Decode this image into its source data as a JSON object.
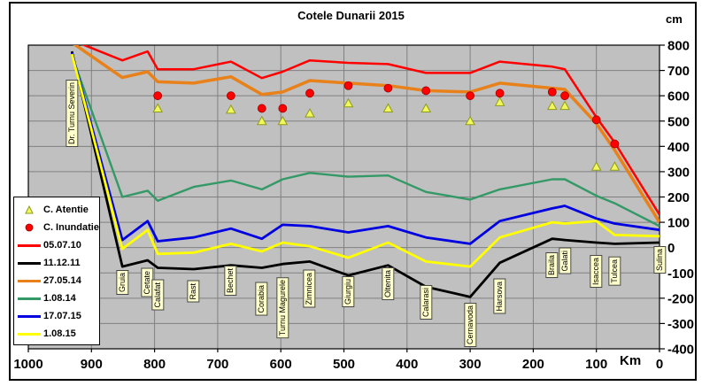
{
  "title": "Cotele Dunarii 2015",
  "y_axis": {
    "unit": "cm",
    "ticks": [
      800,
      700,
      600,
      500,
      400,
      300,
      200,
      100,
      0,
      -100,
      -200,
      -300,
      -400
    ]
  },
  "x_axis": {
    "unit": "Km",
    "ticks": [
      1000,
      900,
      800,
      700,
      600,
      500,
      400,
      300,
      200,
      100,
      0
    ]
  },
  "legend_items": [
    "C. Atentie",
    "C. Inundatie",
    "05.07.10",
    "11.12.11",
    "27.05.14",
    "1.08.14",
    "17.07.15",
    "1.08.15"
  ],
  "chart_data": {
    "type": "line",
    "title": "Cotele Dunarii 2015",
    "xlabel": "Km",
    "ylabel": "cm",
    "xlim_km": [
      1000,
      0
    ],
    "ylim": [
      -400,
      800
    ],
    "grid": true,
    "legend_position": "left",
    "plot_bg": "#C0C0C0",
    "grid_color": "#808080",
    "stations": [
      "Dr. Turnu Severin",
      "Gruia",
      "Cetate",
      "Calafat",
      "Rast",
      "Bechet",
      "Corabia",
      "Turnu Magurele",
      "Zimnicea",
      "Giurgiu",
      "Oltenita",
      "Calarasi",
      "Cernavoda",
      "Harsova",
      "Braila",
      "Galati",
      "Isaccea",
      "Tulcea",
      "Sulina"
    ],
    "km": [
      931,
      851,
      811,
      795,
      738,
      679,
      630,
      597,
      554,
      493,
      430,
      370,
      300,
      253,
      170,
      150,
      100,
      71,
      0
    ],
    "station_label_top": [
      90,
      305,
      303,
      316,
      317,
      300,
      319,
      313,
      305,
      312,
      302,
      322,
      342,
      315,
      285,
      280,
      288,
      290,
      278
    ],
    "series": [
      {
        "name": "05.07.10",
        "color": "#FF0000",
        "width": 2.5,
        "values": [
          820,
          740,
          775,
          705,
          705,
          735,
          670,
          695,
          740,
          730,
          725,
          690,
          690,
          735,
          715,
          705,
          515,
          415,
          130
        ]
      },
      {
        "name": "11.12.11",
        "color": "#000000",
        "width": 2.8,
        "values": [
          775,
          -75,
          -50,
          -80,
          -85,
          -70,
          -80,
          -65,
          -55,
          -110,
          -70,
          -155,
          -195,
          -60,
          35,
          30,
          20,
          15,
          20
        ]
      },
      {
        "name": "27.05.14",
        "color": "#E8811A",
        "width": 3.5,
        "values": [
          810,
          672,
          695,
          655,
          650,
          675,
          605,
          615,
          660,
          650,
          640,
          620,
          615,
          650,
          630,
          625,
          490,
          385,
          100
        ]
      },
      {
        "name": "1.08.14",
        "color": "#339966",
        "width": 2.4,
        "values": [
          760,
          200,
          225,
          185,
          240,
          265,
          230,
          270,
          295,
          280,
          285,
          220,
          190,
          230,
          270,
          270,
          205,
          175,
          85
        ]
      },
      {
        "name": "17.07.15",
        "color": "#0000E0",
        "width": 2.8,
        "values": [
          770,
          30,
          105,
          25,
          40,
          75,
          35,
          90,
          85,
          60,
          85,
          40,
          15,
          105,
          155,
          165,
          115,
          95,
          70
        ]
      },
      {
        "name": "1.08.15",
        "color": "#FFFF00",
        "width": 2.8,
        "values": [
          765,
          -5,
          70,
          -25,
          -20,
          15,
          -15,
          20,
          5,
          -40,
          20,
          -55,
          -75,
          40,
          100,
          95,
          105,
          50,
          45
        ]
      }
    ],
    "markers": [
      {
        "name": "C. Atentie",
        "type": "triangle",
        "fill": "#F2F75E",
        "stroke": "#8E9C1B",
        "values": [
          null,
          null,
          null,
          550,
          null,
          545,
          500,
          500,
          530,
          570,
          550,
          550,
          500,
          575,
          560,
          560,
          320,
          320,
          null
        ]
      },
      {
        "name": "C. Inundatie",
        "type": "dot",
        "fill": "#FF0000",
        "stroke": "#A00000",
        "values": [
          null,
          null,
          null,
          600,
          null,
          600,
          550,
          550,
          610,
          640,
          630,
          620,
          600,
          610,
          615,
          600,
          505,
          410,
          null
        ]
      }
    ]
  }
}
